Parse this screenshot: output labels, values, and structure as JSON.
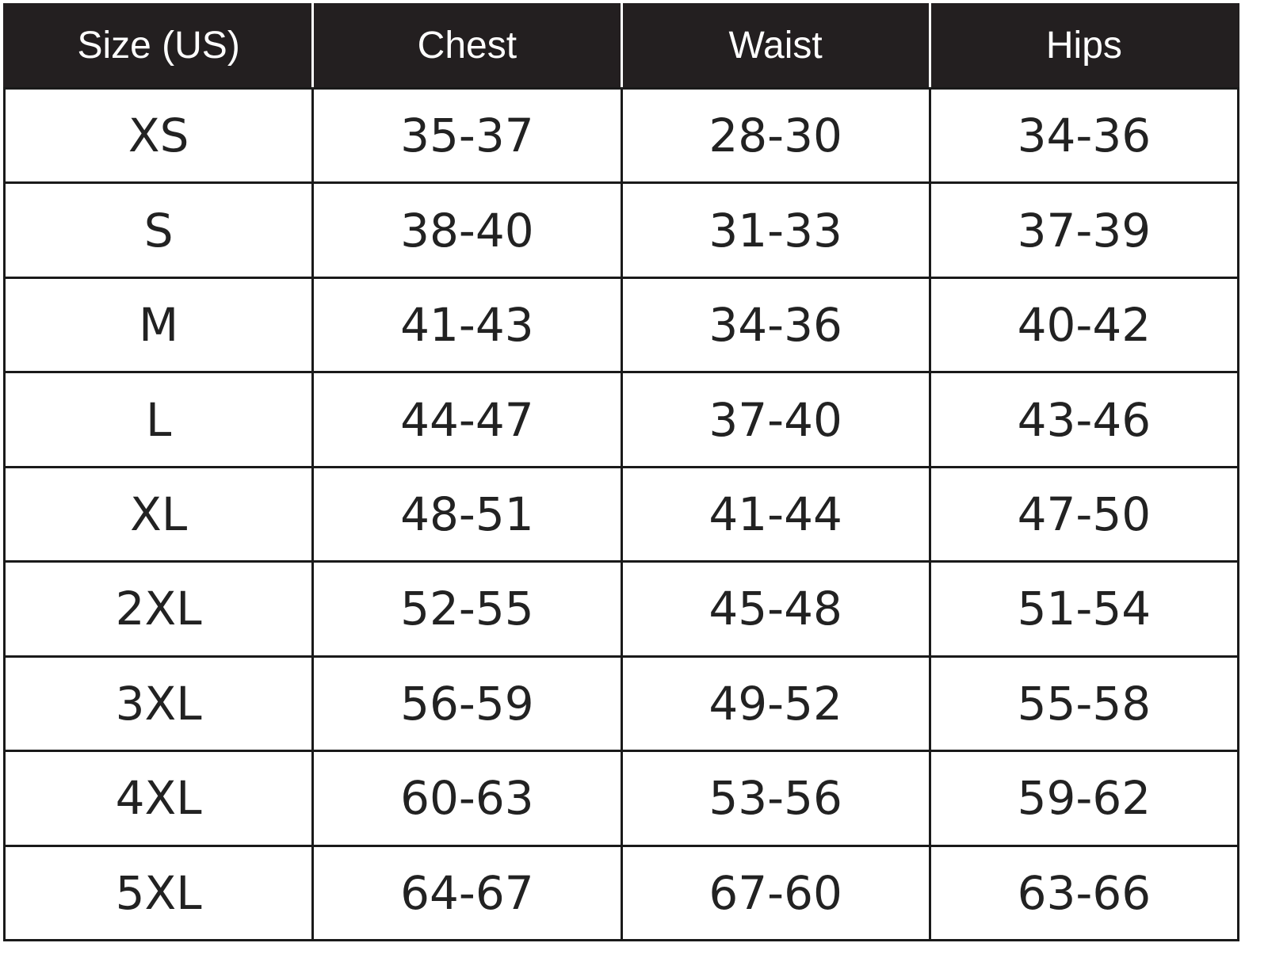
{
  "table": {
    "header": [
      "Size (US)",
      "Chest",
      "Waist",
      "Hips"
    ],
    "rows": [
      [
        "XS",
        "35-37",
        "28-30",
        "34-36"
      ],
      [
        "S",
        "38-40",
        "31-33",
        "37-39"
      ],
      [
        "M",
        "41-43",
        "34-36",
        "40-42"
      ],
      [
        "L",
        "44-47",
        "37-40",
        "43-46"
      ],
      [
        "XL",
        "48-51",
        "41-44",
        "47-50"
      ],
      [
        "2XL",
        "52-55",
        "45-48",
        "51-54"
      ],
      [
        "3XL",
        "56-59",
        "49-52",
        "55-58"
      ],
      [
        "4XL",
        "60-63",
        "53-56",
        "59-62"
      ],
      [
        "5XL",
        "64-67",
        "67-60",
        "63-66"
      ]
    ]
  }
}
